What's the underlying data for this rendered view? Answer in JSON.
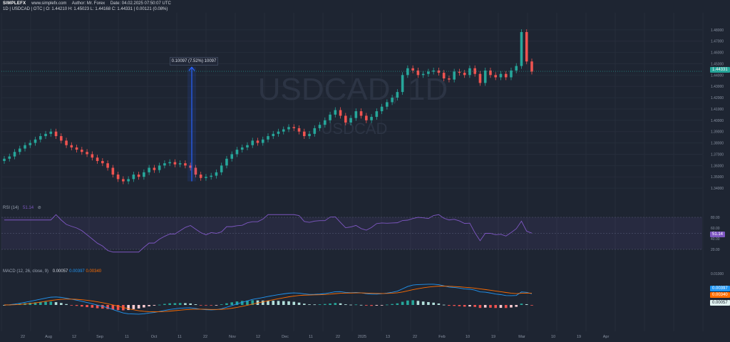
{
  "header": {
    "logo_text": "SIMPLEFX",
    "site": "www.simplefx.com",
    "author": "Author: Mr. Forex",
    "date": "Date: 04.02.2025 07:50:07 UTC",
    "line2": "1D  |  USDCAD  |  OTC  |  O: 1.44210 H: 1.45023 L: 1.44168 C: 1.44331  |  0.00121 (0.08%)"
  },
  "watermark": {
    "symbol": "USDCAD, 1D",
    "sub": "USDCAD"
  },
  "measure_label": "0.10097 (7.52%) 10097",
  "rsi": {
    "title": "RSI (14)",
    "value": "51.14",
    "color": "#7e57c2",
    "levels": [
      "80.00",
      "60.00",
      "40.00",
      "20.00"
    ]
  },
  "macd": {
    "title": "MACD (12, 26, close, 9)",
    "v1": "0.00057",
    "v2": "0.00397",
    "v3": "0.00340",
    "axis_top": "0.01000"
  },
  "price_axis": [
    "1.48000",
    "1.47000",
    "1.46000",
    "1.45000",
    "1.44000",
    "1.43000",
    "1.42000",
    "1.41000",
    "1.40000",
    "1.39000",
    "1.38000",
    "1.37000",
    "1.36000",
    "1.35000",
    "1.34000"
  ],
  "current_price": "1.44331",
  "x_ticks": [
    "22",
    "Aug",
    "12",
    "Sep",
    "11",
    "Oct",
    "11",
    "22",
    "Nov",
    "12",
    "Dec",
    "11",
    "22",
    "2025",
    "13",
    "22",
    "Feb",
    "10",
    "19",
    "Mar",
    "10",
    "19",
    "Apr"
  ],
  "colors": {
    "up": "#26a69a",
    "down": "#ef5350",
    "bg": "#1e2532",
    "macd": "#2196f3",
    "signal": "#ff6d00",
    "rsi": "#7e57c2"
  },
  "chart_data": {
    "type": "candlestick",
    "title": "USDCAD, 1D",
    "ylim": [
      1.335,
      1.495
    ],
    "ohlc_close_sequence": [
      1.366,
      1.368,
      1.372,
      1.375,
      1.378,
      1.38,
      1.383,
      1.386,
      1.388,
      1.39,
      1.386,
      1.382,
      1.378,
      1.376,
      1.374,
      1.372,
      1.37,
      1.367,
      1.364,
      1.362,
      1.358,
      1.352,
      1.348,
      1.346,
      1.348,
      1.352,
      1.35,
      1.354,
      1.358,
      1.356,
      1.36,
      1.362,
      1.363,
      1.361,
      1.362,
      1.36,
      1.358,
      1.352,
      1.349,
      1.35,
      1.351,
      1.354,
      1.36,
      1.366,
      1.37,
      1.374,
      1.376,
      1.378,
      1.382,
      1.38,
      1.383,
      1.386,
      1.388,
      1.39,
      1.392,
      1.394,
      1.393,
      1.39,
      1.386,
      1.388,
      1.393,
      1.396,
      1.4,
      1.405,
      1.409,
      1.404,
      1.398,
      1.402,
      1.408,
      1.404,
      1.4,
      1.403,
      1.408,
      1.412,
      1.416,
      1.42,
      1.425,
      1.44,
      1.446,
      1.444,
      1.44,
      1.441,
      1.443,
      1.444,
      1.442,
      1.437,
      1.436,
      1.443,
      1.442,
      1.44,
      1.446,
      1.441,
      1.433,
      1.444,
      1.44,
      1.438,
      1.441,
      1.438,
      1.444,
      1.448,
      1.478,
      1.452,
      1.443
    ],
    "last": {
      "o": 1.4421,
      "h": 1.45023,
      "l": 1.44168,
      "c": 1.44331
    },
    "rsi_last": 51.14,
    "macd_last": {
      "hist": 0.00057,
      "macd": 0.00397,
      "signal": 0.0034
    }
  }
}
